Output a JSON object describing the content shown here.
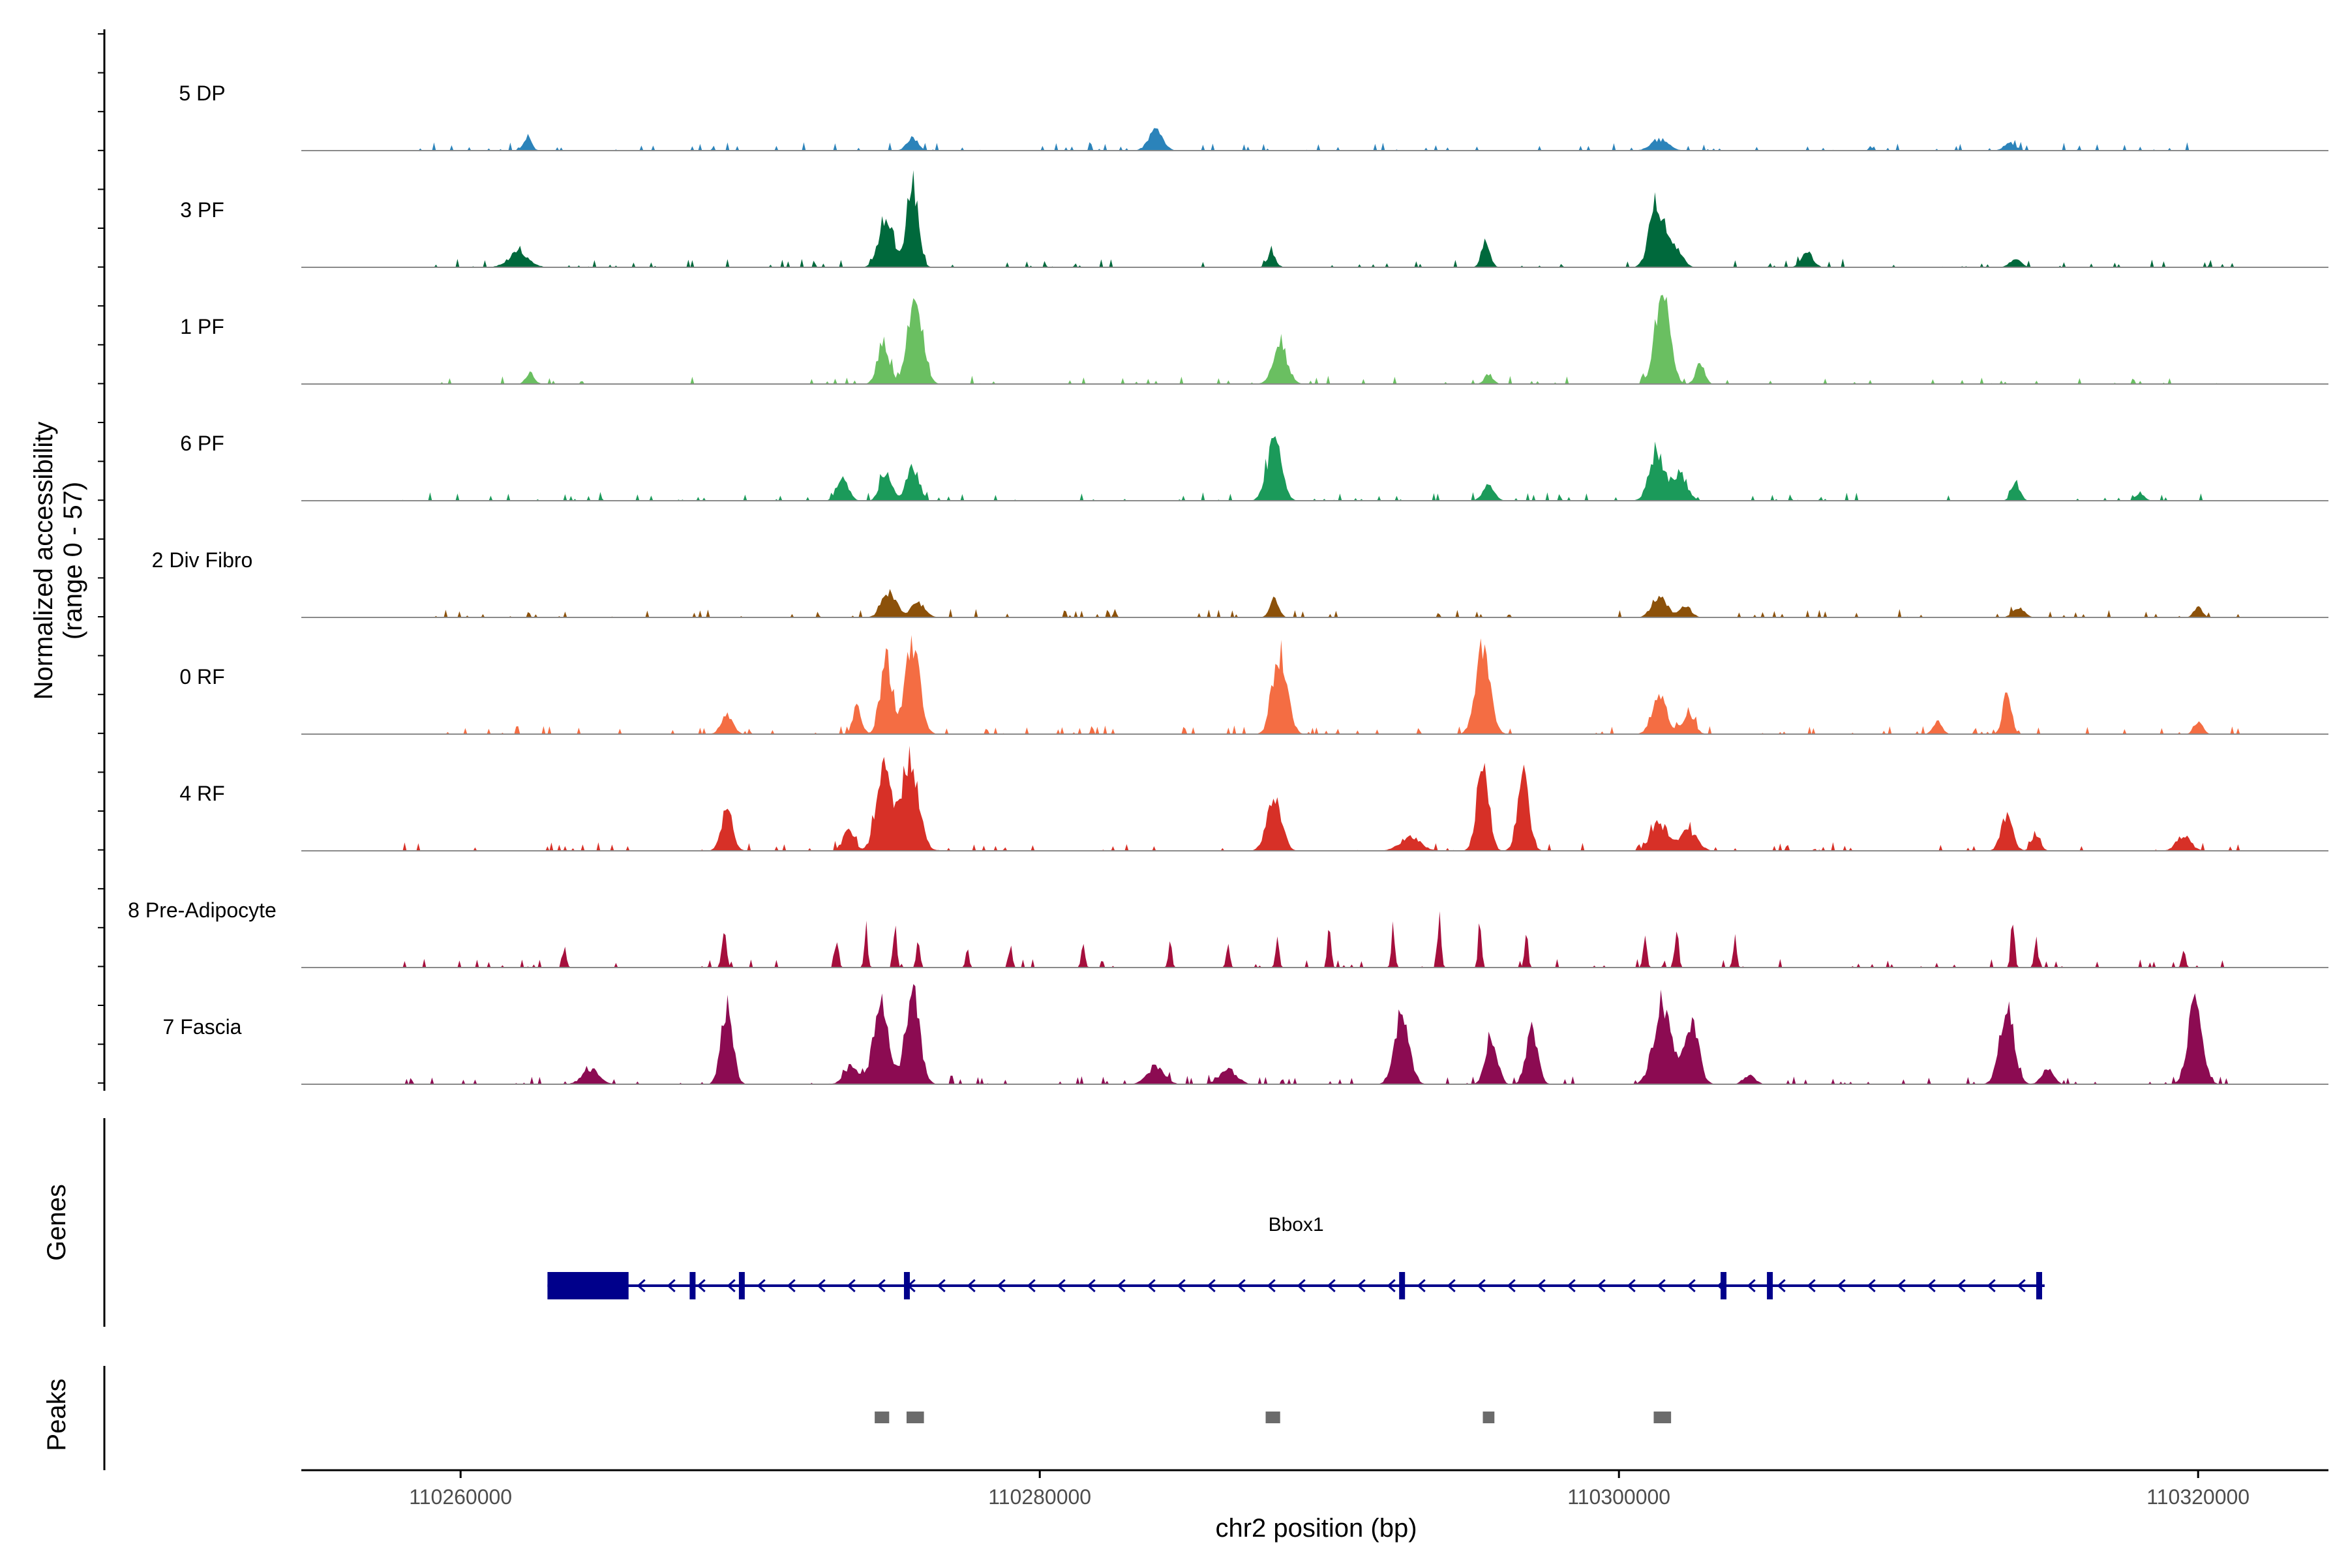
{
  "chart_data": {
    "type": "area",
    "title": "",
    "xlabel": "chr2 position (bp)",
    "ylabel": "Normalized accessibility",
    "ylabel_range": "(range 0 - 57)",
    "ylim": [
      0,
      57
    ],
    "xlim": [
      110254500,
      110324500
    ],
    "x_ticks": [
      110260000,
      110280000,
      110300000,
      110320000
    ],
    "x_tick_labels": [
      "110260000",
      "110280000",
      "110300000",
      "110320000"
    ],
    "track_start": 110258000,
    "track_end": 110321500,
    "tracks": [
      {
        "name": "5 DP",
        "color": "#2b83ba",
        "peaks": [
          [
            110262300,
            8,
            150
          ],
          [
            110275600,
            8,
            200
          ],
          [
            110284000,
            12,
            250
          ],
          [
            110301400,
            7,
            300
          ],
          [
            110313500,
            5,
            200
          ]
        ]
      },
      {
        "name": "3 PF",
        "color": "#00693c",
        "peaks": [
          [
            110262000,
            9,
            350
          ],
          [
            110274700,
            32,
            250
          ],
          [
            110275600,
            52,
            200
          ],
          [
            110288000,
            9,
            150
          ],
          [
            110295400,
            16,
            150
          ],
          [
            110301300,
            36,
            250
          ],
          [
            110301900,
            14,
            250
          ],
          [
            110306500,
            9,
            200
          ],
          [
            110313700,
            5,
            200
          ]
        ]
      },
      {
        "name": "1 PF",
        "color": "#6abf61",
        "peaks": [
          [
            110262400,
            7,
            150
          ],
          [
            110274600,
            27,
            200
          ],
          [
            110275700,
            57,
            250
          ],
          [
            110288300,
            24,
            250
          ],
          [
            110295500,
            6,
            150
          ],
          [
            110301500,
            57,
            250
          ],
          [
            110302800,
            14,
            150
          ]
        ]
      },
      {
        "name": "6 PF",
        "color": "#1b9a5a",
        "peaks": [
          [
            110273200,
            14,
            200
          ],
          [
            110274700,
            19,
            200
          ],
          [
            110275600,
            22,
            200
          ],
          [
            110288100,
            37,
            250
          ],
          [
            110295500,
            9,
            200
          ],
          [
            110301300,
            32,
            250
          ],
          [
            110302100,
            17,
            250
          ],
          [
            110313700,
            11,
            150
          ],
          [
            110318000,
            5,
            150
          ]
        ]
      },
      {
        "name": "2 Div Fibro",
        "color": "#8c510a",
        "peaks": [
          [
            110274800,
            16,
            250
          ],
          [
            110275800,
            9,
            250
          ],
          [
            110288100,
            12,
            150
          ],
          [
            110301400,
            14,
            250
          ],
          [
            110302300,
            7,
            200
          ],
          [
            110313800,
            6,
            200
          ],
          [
            110320000,
            6,
            150
          ]
        ]
      },
      {
        "name": "0 RF",
        "color": "#f46d43",
        "peaks": [
          [
            110269200,
            12,
            200
          ],
          [
            110273700,
            17,
            150
          ],
          [
            110274700,
            47,
            200
          ],
          [
            110275600,
            57,
            250
          ],
          [
            110288300,
            50,
            250
          ],
          [
            110295300,
            54,
            250
          ],
          [
            110301400,
            25,
            250
          ],
          [
            110302400,
            14,
            200
          ],
          [
            110311000,
            9,
            150
          ],
          [
            110313400,
            25,
            150
          ],
          [
            110320000,
            8,
            150
          ]
        ]
      },
      {
        "name": "4 RF",
        "color": "#d73027",
        "peaks": [
          [
            110269200,
            25,
            200
          ],
          [
            110273400,
            12,
            200
          ],
          [
            110274600,
            50,
            250
          ],
          [
            110275500,
            57,
            300
          ],
          [
            110288100,
            32,
            250
          ],
          [
            110292800,
            9,
            350
          ],
          [
            110295300,
            57,
            200
          ],
          [
            110296700,
            45,
            200
          ],
          [
            110301400,
            17,
            300
          ],
          [
            110302400,
            12,
            300
          ],
          [
            110313400,
            22,
            200
          ],
          [
            110314400,
            11,
            150
          ],
          [
            110319500,
            9,
            250
          ]
        ]
      },
      {
        "name": "8 Pre-Adipocyte",
        "color": "#a50f3d",
        "peaks": [
          [
            110263600,
            12,
            60
          ],
          [
            110269100,
            22,
            80
          ],
          [
            110273000,
            18,
            60
          ],
          [
            110274000,
            22,
            60
          ],
          [
            110275000,
            28,
            60
          ],
          [
            110275800,
            20,
            60
          ],
          [
            110277500,
            12,
            60
          ],
          [
            110279000,
            12,
            60
          ],
          [
            110281500,
            17,
            60
          ],
          [
            110284500,
            17,
            60
          ],
          [
            110286500,
            17,
            60
          ],
          [
            110288200,
            20,
            60
          ],
          [
            110290000,
            28,
            60
          ],
          [
            110292200,
            25,
            60
          ],
          [
            110293800,
            34,
            60
          ],
          [
            110295200,
            29,
            60
          ],
          [
            110296800,
            22,
            60
          ],
          [
            110300900,
            25,
            60
          ],
          [
            110302000,
            24,
            60
          ],
          [
            110304000,
            18,
            60
          ],
          [
            110313600,
            34,
            60
          ],
          [
            110314400,
            18,
            60
          ],
          [
            110319500,
            12,
            60
          ]
        ]
      },
      {
        "name": "7 Fascia",
        "color": "#8c0b52",
        "peaks": [
          [
            110264500,
            9,
            300
          ],
          [
            110269200,
            47,
            200
          ],
          [
            110273500,
            12,
            250
          ],
          [
            110274500,
            50,
            250
          ],
          [
            110275600,
            57,
            250
          ],
          [
            110284000,
            11,
            300
          ],
          [
            110286500,
            9,
            300
          ],
          [
            110292500,
            45,
            250
          ],
          [
            110295600,
            30,
            200
          ],
          [
            110297000,
            32,
            200
          ],
          [
            110301500,
            50,
            300
          ],
          [
            110302500,
            37,
            250
          ],
          [
            110304500,
            6,
            200
          ],
          [
            110313400,
            45,
            250
          ],
          [
            110314800,
            9,
            200
          ],
          [
            110319900,
            50,
            250
          ]
        ]
      }
    ],
    "genes": {
      "label": "Genes",
      "gene_name": "Bbox1",
      "start": 110263000,
      "end": 110314700,
      "strand": "-",
      "utr_block": [
        110263000,
        110265800
      ],
      "exons": [
        110268000,
        110269700,
        110275400,
        110292500,
        110303600,
        110305200,
        110314500
      ]
    },
    "peaks_track": {
      "label": "Peaks",
      "regions": [
        [
          110274300,
          110274800
        ],
        [
          110275400,
          110276000
        ],
        [
          110287800,
          110288300
        ],
        [
          110295300,
          110295700
        ],
        [
          110301200,
          110301800
        ]
      ]
    }
  }
}
